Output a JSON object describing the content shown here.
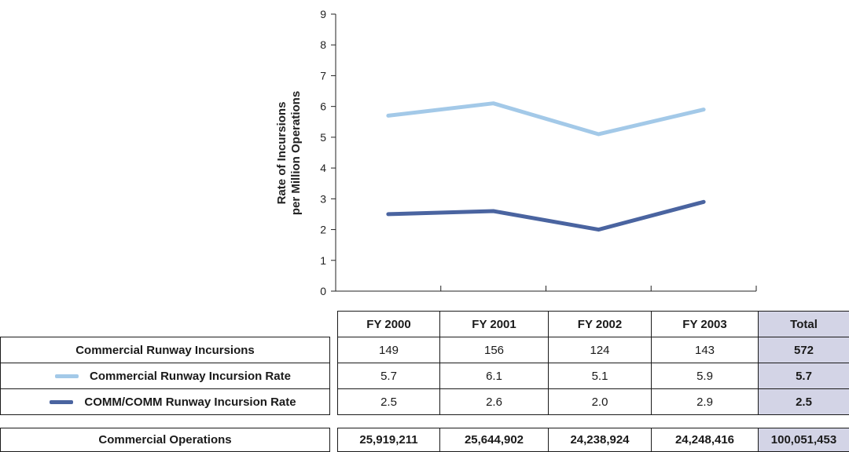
{
  "chart_data": {
    "type": "line",
    "title": "",
    "ylabel": [
      "Rate of Incursions",
      "per Million Operations"
    ],
    "ylim": [
      0,
      9
    ],
    "yticks": [
      "0",
      "1",
      "2",
      "3",
      "4",
      "5",
      "6",
      "7",
      "8",
      "9"
    ],
    "categories": [
      "FY 2000",
      "FY 2001",
      "FY 2002",
      "FY 2003"
    ],
    "series": [
      {
        "name": "Commercial Runway Incursion Rate",
        "color": "#a3c9e8",
        "values": [
          5.7,
          6.1,
          5.1,
          5.9
        ]
      },
      {
        "name": "COMM/COMM Runway Incursion Rate",
        "color": "#4a64a0",
        "values": [
          2.5,
          2.6,
          2.0,
          2.9
        ]
      }
    ]
  },
  "table": {
    "headers": [
      "FY 2000",
      "FY 2001",
      "FY 2002",
      "FY 2003",
      "Total"
    ],
    "rows": [
      {
        "label": "Commercial Runway Incursions",
        "values": [
          "149",
          "156",
          "124",
          "143"
        ],
        "total": "572"
      },
      {
        "label": "Commercial Runway Incursion Rate",
        "values": [
          "5.7",
          "6.1",
          "5.1",
          "5.9"
        ],
        "total": "5.7",
        "swatch": "#a3c9e8"
      },
      {
        "label": "COMM/COMM Runway Incursion Rate",
        "values": [
          "2.5",
          "2.6",
          "2.0",
          "2.9"
        ],
        "total": "2.5",
        "swatch": "#4a64a0"
      }
    ],
    "ops": {
      "label": "Commercial Operations",
      "values": [
        "25,919,211",
        "25,644,902",
        "24,238,924",
        "24,248,416"
      ],
      "total": "100,051,453"
    }
  }
}
